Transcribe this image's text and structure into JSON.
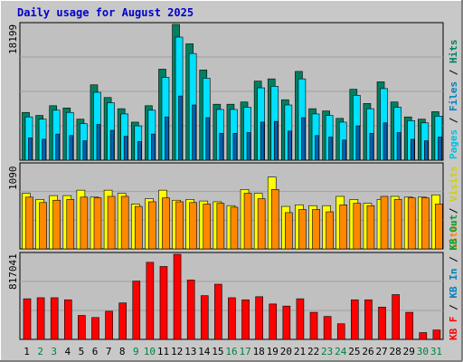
{
  "window": {
    "title": "Daily usage for August 2025"
  },
  "colors": {
    "frame": "#c8c8c8",
    "plot_bg": "#c0c0c0",
    "grid": "#a0a0a0",
    "weekend_day_label": "#008040",
    "weekday_day_label": "#000000",
    "pages": "#00d0e8",
    "files": "#00e0ff",
    "hits": "#008060",
    "visits": "#ffff00",
    "sites": "#ff8800",
    "kbf": "#ff0000",
    "kbin": "#0080c0",
    "kbout": "#00a040"
  },
  "chart_data": [
    {
      "type": "bar",
      "title": "Daily usage for August 2025",
      "x": [
        "1",
        "2",
        "3",
        "4",
        "5",
        "6",
        "7",
        "8",
        "9",
        "10",
        "11",
        "12",
        "13",
        "14",
        "15",
        "16",
        "17",
        "18",
        "19",
        "20",
        "21",
        "22",
        "23",
        "24",
        "25",
        "26",
        "27",
        "28",
        "29",
        "30",
        "31"
      ],
      "weekend_days": [
        "2",
        "3",
        "9",
        "10",
        "16",
        "17",
        "23",
        "24",
        "30",
        "31"
      ],
      "ymax_label": "18199",
      "ylim": [
        0,
        18199
      ],
      "legend": [
        "Pages",
        "Files",
        "Hits"
      ],
      "series": [
        {
          "name": "Hits",
          "color": "#008060",
          "values": [
            6400,
            6000,
            7300,
            7000,
            5500,
            10100,
            8400,
            6900,
            5100,
            7300,
            12200,
            18199,
            15600,
            12100,
            7500,
            7500,
            7800,
            10600,
            10900,
            8100,
            11900,
            6900,
            6600,
            5600,
            9500,
            7600,
            10500,
            7800,
            5800,
            5500,
            6500
          ]
        },
        {
          "name": "Files",
          "color": "#00e0ff",
          "values": [
            5800,
            5500,
            6700,
            6400,
            4900,
            9100,
            7700,
            6200,
            4600,
            6700,
            11100,
            16500,
            14300,
            11000,
            6800,
            6800,
            7100,
            9700,
            9900,
            7400,
            10900,
            6200,
            6000,
            5100,
            8700,
            6900,
            9600,
            7100,
            5300,
            5000,
            5900
          ]
        },
        {
          "name": "Pages",
          "color": "#00d0e8",
          "values": [
            3000,
            2800,
            3500,
            3300,
            2600,
            4800,
            4000,
            3200,
            2500,
            3500,
            5800,
            8600,
            7400,
            5700,
            3600,
            3600,
            3700,
            5100,
            5200,
            3900,
            5700,
            3300,
            3100,
            2700,
            4600,
            3600,
            5000,
            3700,
            2800,
            2600,
            3100
          ]
        }
      ]
    },
    {
      "type": "bar",
      "ymax_label": "1090",
      "ylim": [
        0,
        1090
      ],
      "legend": [
        "Sites",
        "Visits"
      ],
      "series": [
        {
          "name": "Visits",
          "color": "#ffff00",
          "values": [
            720,
            640,
            690,
            690,
            760,
            670,
            760,
            720,
            580,
            650,
            760,
            630,
            640,
            620,
            610,
            560,
            770,
            720,
            930,
            550,
            570,
            560,
            560,
            680,
            640,
            590,
            640,
            680,
            670,
            670,
            700
          ]
        },
        {
          "name": "Sites",
          "color": "#ff8800",
          "values": [
            670,
            600,
            630,
            640,
            670,
            660,
            680,
            680,
            550,
            610,
            660,
            610,
            600,
            580,
            590,
            540,
            720,
            650,
            770,
            470,
            510,
            510,
            480,
            570,
            590,
            560,
            680,
            640,
            660,
            660,
            580
          ]
        }
      ]
    },
    {
      "type": "bar",
      "ymax_label": "817041",
      "ylim": [
        0,
        817041
      ],
      "legend": [
        "KB F",
        "KB In",
        "KB Out"
      ],
      "series": [
        {
          "name": "KB F",
          "color": "#ff0000",
          "values": [
            390000,
            400000,
            400000,
            380000,
            230000,
            210000,
            270000,
            350000,
            560000,
            740000,
            700000,
            817041,
            570000,
            420000,
            530000,
            400000,
            380000,
            410000,
            340000,
            320000,
            390000,
            260000,
            220000,
            150000,
            380000,
            380000,
            310000,
            430000,
            260000,
            65000,
            90000
          ]
        }
      ]
    }
  ]
}
